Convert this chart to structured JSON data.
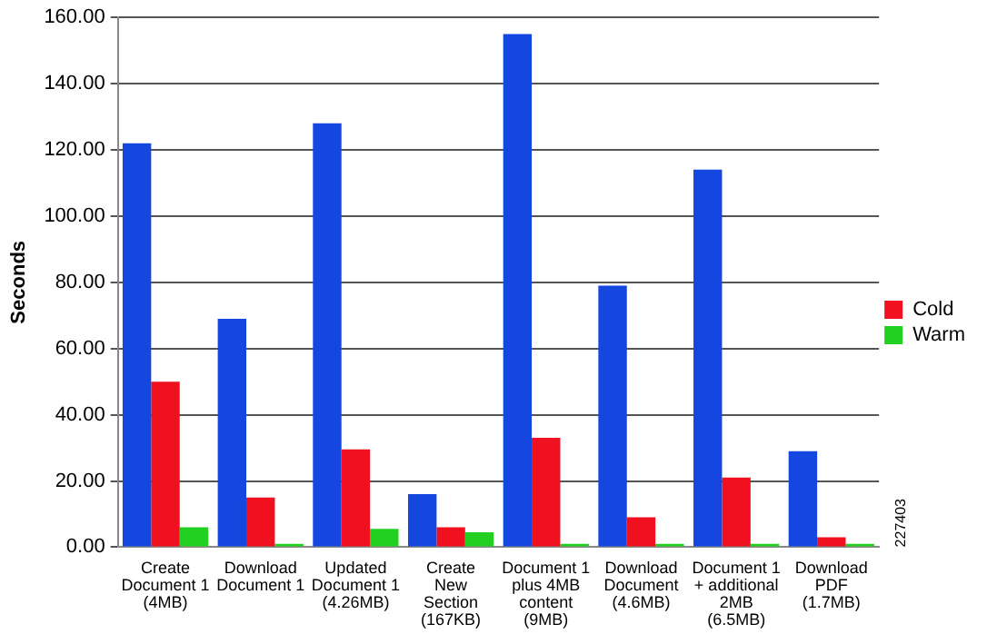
{
  "chart_data": {
    "type": "bar",
    "ylabel": "Seconds",
    "categories": [
      "Create\nDocument 1\n(4MB)",
      "Download\nDocument 1",
      "Updated\nDocument 1\n(4.26MB)",
      "Create\nNew\nSection\n(167KB)",
      "Document 1\nplus 4MB\ncontent\n(9MB)",
      "Download\nDocument\n(4.6MB)",
      "Document 1\n+ additional\n2MB\n(6.5MB)",
      "Download\nPDF\n(1.7MB)"
    ],
    "series": [
      {
        "color": "#1446e0",
        "values": [
          122,
          69,
          128,
          16,
          155,
          79,
          114,
          29
        ]
      },
      {
        "name": "Cold",
        "color": "#f01020",
        "values": [
          50,
          15,
          29.5,
          6,
          33,
          9,
          21,
          3
        ]
      },
      {
        "name": "Warm",
        "color": "#22d022",
        "values": [
          6,
          1,
          5.5,
          4.5,
          1,
          1,
          1,
          1
        ]
      }
    ],
    "ylim": [
      0,
      160
    ],
    "yticks": [
      {
        "value": 0,
        "label": "0.00"
      },
      {
        "value": 20,
        "label": "20.00"
      },
      {
        "value": 40,
        "label": "40.00"
      },
      {
        "value": 60,
        "label": "60.00"
      },
      {
        "value": 80,
        "label": "80.00"
      },
      {
        "value": 100,
        "label": "100.00"
      },
      {
        "value": 120,
        "label": "120.00"
      },
      {
        "value": 140,
        "label": "140.00"
      },
      {
        "value": 160,
        "label": "160.00"
      }
    ],
    "grid": "y",
    "legend": "right",
    "annotations": [
      "227403"
    ]
  }
}
